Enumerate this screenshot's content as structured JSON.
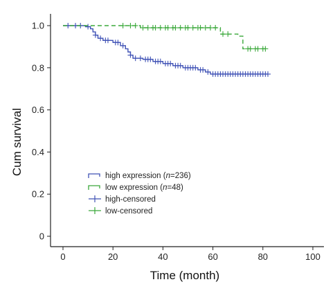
{
  "chart_data": {
    "type": "line",
    "subtype": "kaplan-meier",
    "title": "",
    "xlabel": "Time (month)",
    "ylabel": "Cum survival",
    "xlim": [
      0,
      100
    ],
    "ylim": [
      0,
      1.0
    ],
    "xticks": [
      0,
      20,
      40,
      60,
      80,
      100
    ],
    "yticks": [
      0,
      0.2,
      0.4,
      0.6,
      0.8,
      1.0
    ],
    "ytick_labels": [
      "0",
      "0.2",
      "0.4",
      "0.6",
      "0.8",
      "1.0"
    ],
    "grid": false,
    "legend_position": "lower-left",
    "legend": [
      {
        "key": "high",
        "label_pre": "high expression (",
        "label_italic": "n",
        "label_post": "=236)",
        "marker": "step"
      },
      {
        "key": "low",
        "label_pre": "low expression (",
        "label_italic": "n",
        "label_post": "=48)",
        "marker": "step"
      },
      {
        "key": "high",
        "label_pre": "high-censored",
        "label_italic": "",
        "label_post": "",
        "marker": "cross"
      },
      {
        "key": "low",
        "label_pre": "low-censored",
        "label_italic": "",
        "label_post": "",
        "marker": "cross"
      }
    ],
    "series": [
      {
        "key": "high",
        "name": "high expression",
        "color": "#3f51b5",
        "dashed": false,
        "steps": [
          [
            0,
            1.0
          ],
          [
            9,
            0.995
          ],
          [
            11,
            0.985
          ],
          [
            12,
            0.97
          ],
          [
            13,
            0.955
          ],
          [
            14,
            0.94
          ],
          [
            16,
            0.93
          ],
          [
            20,
            0.92
          ],
          [
            23,
            0.905
          ],
          [
            25,
            0.89
          ],
          [
            26,
            0.875
          ],
          [
            27,
            0.86
          ],
          [
            28,
            0.845
          ],
          [
            32,
            0.84
          ],
          [
            36,
            0.83
          ],
          [
            40,
            0.82
          ],
          [
            44,
            0.81
          ],
          [
            48,
            0.8
          ],
          [
            54,
            0.79
          ],
          [
            57,
            0.78
          ],
          [
            59,
            0.77
          ],
          [
            82,
            0.77
          ]
        ],
        "censored": [
          2,
          5,
          7,
          10,
          13,
          15,
          17,
          18,
          21,
          22,
          24,
          27,
          29,
          31,
          33,
          34,
          35,
          37,
          38,
          39,
          41,
          42,
          43,
          45,
          46,
          47,
          49,
          50,
          51,
          52,
          53,
          55,
          56,
          58,
          60,
          61,
          62,
          63,
          64,
          65,
          66,
          67,
          68,
          69,
          70,
          71,
          72,
          73,
          74,
          75,
          76,
          77,
          78,
          79,
          80,
          81,
          82
        ]
      },
      {
        "key": "low",
        "name": "low expression",
        "color": "#3aa83a",
        "dashed": true,
        "steps": [
          [
            0,
            1.0
          ],
          [
            31,
            0.99
          ],
          [
            63,
            0.96
          ],
          [
            70,
            0.95
          ],
          [
            72,
            0.89
          ],
          [
            82,
            0.89
          ]
        ],
        "censored": [
          24,
          27,
          29,
          32,
          34,
          36,
          37,
          39,
          41,
          42,
          44,
          45,
          47,
          49,
          50,
          52,
          54,
          55,
          57,
          59,
          61,
          64,
          66,
          74,
          75,
          77,
          78,
          80,
          81
        ]
      }
    ]
  }
}
